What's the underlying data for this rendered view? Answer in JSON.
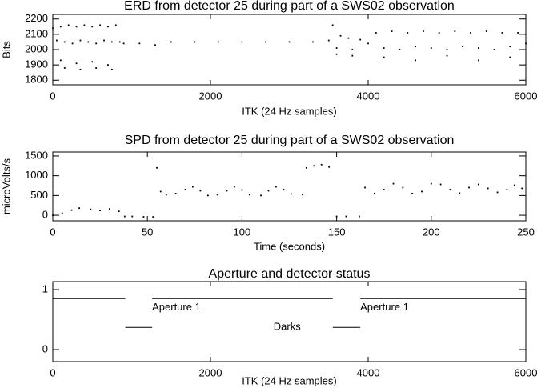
{
  "chart_data": [
    {
      "type": "scatter",
      "title": "ERD from detector 25 during part of a SWS02 observation",
      "x_label": "ITK (24 Hz samples)",
      "y_label": "Bits",
      "color": "#000000",
      "xlim": [
        0,
        6000
      ],
      "xticks": [
        0,
        2000,
        4000,
        6000
      ],
      "ylim": [
        1770,
        2230
      ],
      "yticks": [
        1800,
        1900,
        2000,
        2100,
        2200
      ],
      "x": [
        0,
        50,
        100,
        150,
        200,
        250,
        300,
        350,
        400,
        450,
        500,
        550,
        600,
        650,
        700,
        750,
        800,
        850,
        100,
        300,
        500,
        700,
        150,
        350,
        550,
        750,
        900,
        1100,
        1300,
        1500,
        1800,
        2100,
        2400,
        2700,
        3000,
        3300,
        3500,
        3550,
        3650,
        3750,
        3900,
        3600,
        3800,
        3600,
        3800,
        4000,
        4100,
        4200,
        4300,
        4400,
        4500,
        4600,
        4700,
        4800,
        4900,
        5000,
        5100,
        5200,
        5300,
        5400,
        5500,
        5600,
        5700,
        5800,
        5900,
        6000,
        4200,
        4600,
        5000,
        5400,
        5800
      ],
      "values": [
        2140,
        2060,
        2150,
        2050,
        2160,
        2040,
        2150,
        2060,
        2160,
        2050,
        2150,
        2040,
        2160,
        2060,
        2150,
        2050,
        2160,
        2050,
        1930,
        1910,
        1920,
        1900,
        1880,
        1870,
        1880,
        1870,
        2040,
        2040,
        2030,
        2050,
        2050,
        2050,
        2050,
        2050,
        2050,
        2050,
        2060,
        2160,
        2090,
        2075,
        2065,
        2010,
        2000,
        1970,
        1960,
        2040,
        2110,
        2010,
        2120,
        2000,
        2110,
        2020,
        2120,
        2010,
        2110,
        2000,
        2120,
        2020,
        2110,
        2010,
        2120,
        2000,
        2110,
        2020,
        2110,
        2040,
        1950,
        1930,
        1960,
        1930,
        1950
      ]
    },
    {
      "type": "scatter",
      "title": "SPD from detector 25 during part of a SWS02 observation",
      "x_label": "Time (seconds)",
      "y_label": "microVolts/s",
      "color": "#000000",
      "xlim": [
        0,
        250
      ],
      "xticks": [
        0,
        50,
        100,
        150,
        200,
        250
      ],
      "ylim": [
        -140,
        1600
      ],
      "yticks": [
        0,
        500,
        1000,
        1500
      ],
      "x": [
        0,
        5,
        10,
        14,
        20,
        25,
        30,
        35,
        38,
        42,
        48,
        53,
        55,
        57,
        60,
        65,
        70,
        74,
        78,
        82,
        87,
        92,
        96,
        100,
        104,
        110,
        114,
        118,
        122,
        126,
        132,
        134,
        138,
        142,
        146,
        150,
        155,
        162,
        165,
        170,
        175,
        180,
        185,
        190,
        195,
        200,
        205,
        210,
        215,
        220,
        225,
        230,
        235,
        240,
        244,
        248
      ],
      "values": [
        0,
        50,
        130,
        180,
        150,
        120,
        160,
        100,
        -30,
        -30,
        -40,
        -40,
        1200,
        600,
        520,
        550,
        650,
        720,
        620,
        500,
        520,
        620,
        720,
        640,
        520,
        500,
        620,
        720,
        650,
        540,
        520,
        1200,
        1250,
        1280,
        1220,
        -30,
        -30,
        -30,
        700,
        550,
        650,
        800,
        700,
        550,
        600,
        800,
        780,
        650,
        560,
        700,
        780,
        680,
        580,
        650,
        760,
        680
      ]
    },
    {
      "type": "line",
      "title": "Aperture and detector status",
      "x_label": "ITK (24 Hz samples)",
      "xlim": [
        0,
        6000
      ],
      "xticks": [
        0,
        2000,
        4000,
        6000
      ],
      "ylim": [
        -0.2,
        1.133
      ],
      "yticks": [
        0,
        1
      ],
      "x": [
        0,
        920,
        920,
        1260,
        1260,
        3550,
        3550,
        3900,
        3900,
        6000
      ],
      "series": [
        {
          "color": "#000000",
          "values": [
            0.85,
            0.85,
            null,
            null,
            0.85,
            0.85,
            null,
            null,
            0.85,
            0.85
          ]
        },
        {
          "color": "#000000",
          "values": [
            null,
            null,
            0.37,
            0.37,
            null,
            null,
            0.37,
            0.37,
            null,
            null
          ]
        }
      ],
      "annotations": [
        {
          "text": "Aperture 1",
          "x": 1260,
          "y": 0.7
        },
        {
          "text": "Aperture 1",
          "x": 3900,
          "y": 0.7
        },
        {
          "text": "Darks",
          "x": 2800,
          "y": 0.37
        }
      ]
    }
  ]
}
